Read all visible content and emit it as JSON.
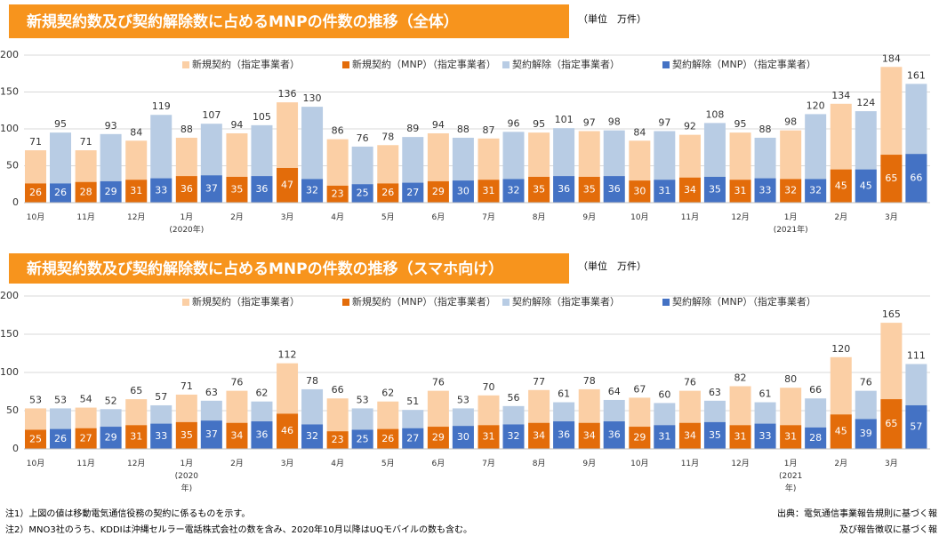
{
  "chart_data": [
    {
      "type": "bar",
      "title": "新規契約数及び契約解除数に占めるMNPの件数の推移（全体）",
      "unit": "（単位　万件）",
      "categories": [
        "10月",
        "11月",
        "12月",
        "1月\n(2020年)",
        "2月",
        "3月",
        "4月",
        "5月",
        "6月",
        "7月",
        "8月",
        "9月",
        "10月",
        "11月",
        "12月",
        "1月\n(2021年)",
        "2月",
        "3月"
      ],
      "series": [
        {
          "name": "新規契約（指定事業者）",
          "color": "#fbcfa5",
          "values": [
            71,
            71,
            84,
            88,
            94,
            136,
            86,
            78,
            94,
            87,
            95,
            97,
            84,
            92,
            95,
            98,
            134,
            184
          ]
        },
        {
          "name": "新規契約（MNP）（指定事業者）",
          "color": "#e36c0a",
          "values": [
            26,
            28,
            31,
            36,
            35,
            47,
            23,
            26,
            29,
            31,
            35,
            35,
            30,
            34,
            31,
            32,
            45,
            65
          ]
        },
        {
          "name": "契約解除（指定事業者）",
          "color": "#b8cce4",
          "values": [
            95,
            93,
            119,
            107,
            105,
            130,
            76,
            89,
            88,
            96,
            101,
            98,
            97,
            108,
            88,
            120,
            124,
            161
          ]
        },
        {
          "name": "契約解除（MNP）（指定事業者）",
          "color": "#4472c4",
          "values": [
            26,
            29,
            33,
            37,
            36,
            32,
            25,
            27,
            30,
            32,
            36,
            36,
            31,
            35,
            33,
            32,
            45,
            66
          ]
        }
      ],
      "ylim": [
        0,
        200
      ],
      "yticks": [
        0,
        50,
        100,
        150,
        200
      ],
      "grid": true
    },
    {
      "type": "bar",
      "title": "新規契約数及び契約解除数に占めるMNPの件数の推移（スマホ向け）",
      "unit": "（単位　万件）",
      "categories": [
        "10月",
        "11月",
        "12月",
        "1月\n(2020\n年)",
        "2月",
        "3月",
        "4月",
        "5月",
        "6月",
        "7月",
        "8月",
        "9月",
        "10月",
        "11月",
        "12月",
        "1月\n(2021\n年)",
        "2月",
        "3月"
      ],
      "series": [
        {
          "name": "新規契約（指定事業者）",
          "color": "#fbcfa5",
          "values": [
            53,
            54,
            65,
            71,
            76,
            112,
            66,
            62,
            76,
            70,
            77,
            78,
            67,
            76,
            82,
            80,
            120,
            165
          ]
        },
        {
          "name": "新規契約（MNP）（指定事業者）",
          "color": "#e36c0a",
          "values": [
            25,
            27,
            31,
            35,
            34,
            46,
            23,
            26,
            29,
            31,
            34,
            34,
            29,
            34,
            31,
            31,
            45,
            65
          ]
        },
        {
          "name": "契約解除（指定事業者）",
          "color": "#b8cce4",
          "values": [
            53,
            52,
            57,
            63,
            62,
            78,
            53,
            51,
            53,
            56,
            61,
            64,
            60,
            63,
            61,
            66,
            76,
            111
          ]
        },
        {
          "name": "契約解除（MNP）（指定事業者）",
          "color": "#4472c4",
          "values": [
            26,
            29,
            33,
            37,
            36,
            32,
            25,
            27,
            30,
            32,
            36,
            36,
            31,
            35,
            33,
            28,
            39,
            57
          ]
        }
      ],
      "ylim": [
        0,
        200
      ],
      "yticks": [
        0,
        50,
        100,
        150,
        200
      ],
      "grid": true
    }
  ],
  "notes": [
    "注1）上図の値は移動電気通信役務の契約に係るものを示す。",
    "注2）MNO3社のうち、KDDIは沖縄セルラー電話株式会社の数を含み、2020年10月以降はUQモバイルの数も含む。"
  ],
  "source": [
    "出典：電気通信事業報告規則に基づく報",
    "及び報告徴収に基づく報"
  ]
}
